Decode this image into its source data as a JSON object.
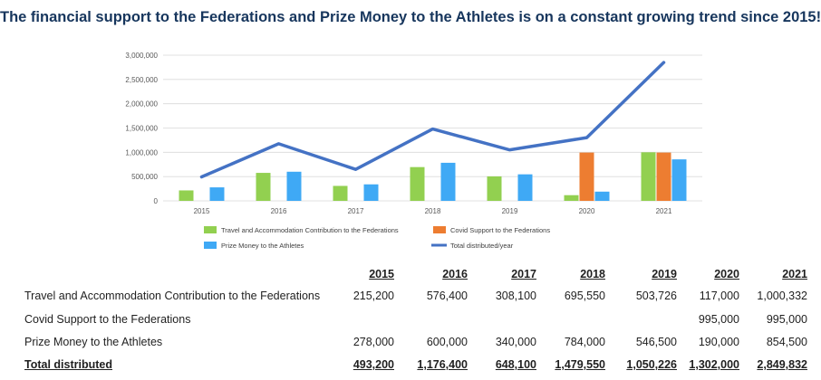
{
  "title": "The financial support to the Federations and Prize Money to the Athletes is on a constant growing trend since 2015!",
  "chart_data": {
    "type": "bar",
    "categories": [
      "2015",
      "2016",
      "2017",
      "2018",
      "2019",
      "2020",
      "2021"
    ],
    "series": [
      {
        "name": "Travel and Accommodation Contribution to the Federations",
        "kind": "bar",
        "color": "#92d050",
        "values": [
          215200,
          576400,
          308100,
          695550,
          503726,
          117000,
          1000332
        ]
      },
      {
        "name": "Covid Support to the Federations",
        "kind": "bar",
        "color": "#ed7d31",
        "values": [
          0,
          0,
          0,
          0,
          0,
          995000,
          995000
        ]
      },
      {
        "name": "Prize Money to the Athletes",
        "kind": "bar",
        "color": "#3fa9f5",
        "values": [
          278000,
          600000,
          340000,
          784000,
          546500,
          190000,
          854500
        ]
      },
      {
        "name": "Total distributed/year",
        "kind": "line",
        "color": "#4472c4",
        "values": [
          493200,
          1176400,
          648100,
          1479550,
          1050226,
          1302000,
          2849832
        ]
      }
    ],
    "ylim": [
      0,
      3000000
    ],
    "yticks": [
      "0",
      "500,000",
      "1,000,000",
      "1,500,000",
      "2,000,000",
      "2,500,000",
      "3,000,000"
    ],
    "grid": true,
    "legend": "bottom"
  },
  "table": {
    "years": [
      "2015",
      "2016",
      "2017",
      "2018",
      "2019",
      "2020",
      "2021"
    ],
    "rows": [
      {
        "label": "Travel and Accommodation Contribution to the Federations",
        "values": [
          "215,200",
          "576,400",
          "308,100",
          "695,550",
          "503,726",
          "117,000",
          "1,000,332"
        ]
      },
      {
        "label": "Covid Support to the Federations",
        "values": [
          "",
          "",
          "",
          "",
          "",
          "995,000",
          "995,000"
        ]
      },
      {
        "label": "Prize Money to the Athletes",
        "values": [
          "278,000",
          "600,000",
          "340,000",
          "784,000",
          "546,500",
          "190,000",
          "854,500"
        ]
      }
    ],
    "total": {
      "label": "Total distributed",
      "values": [
        "493,200",
        "1,176,400",
        "648,100",
        "1,479,550",
        "1,050,226",
        "1,302,000",
        "2,849,832"
      ]
    }
  }
}
